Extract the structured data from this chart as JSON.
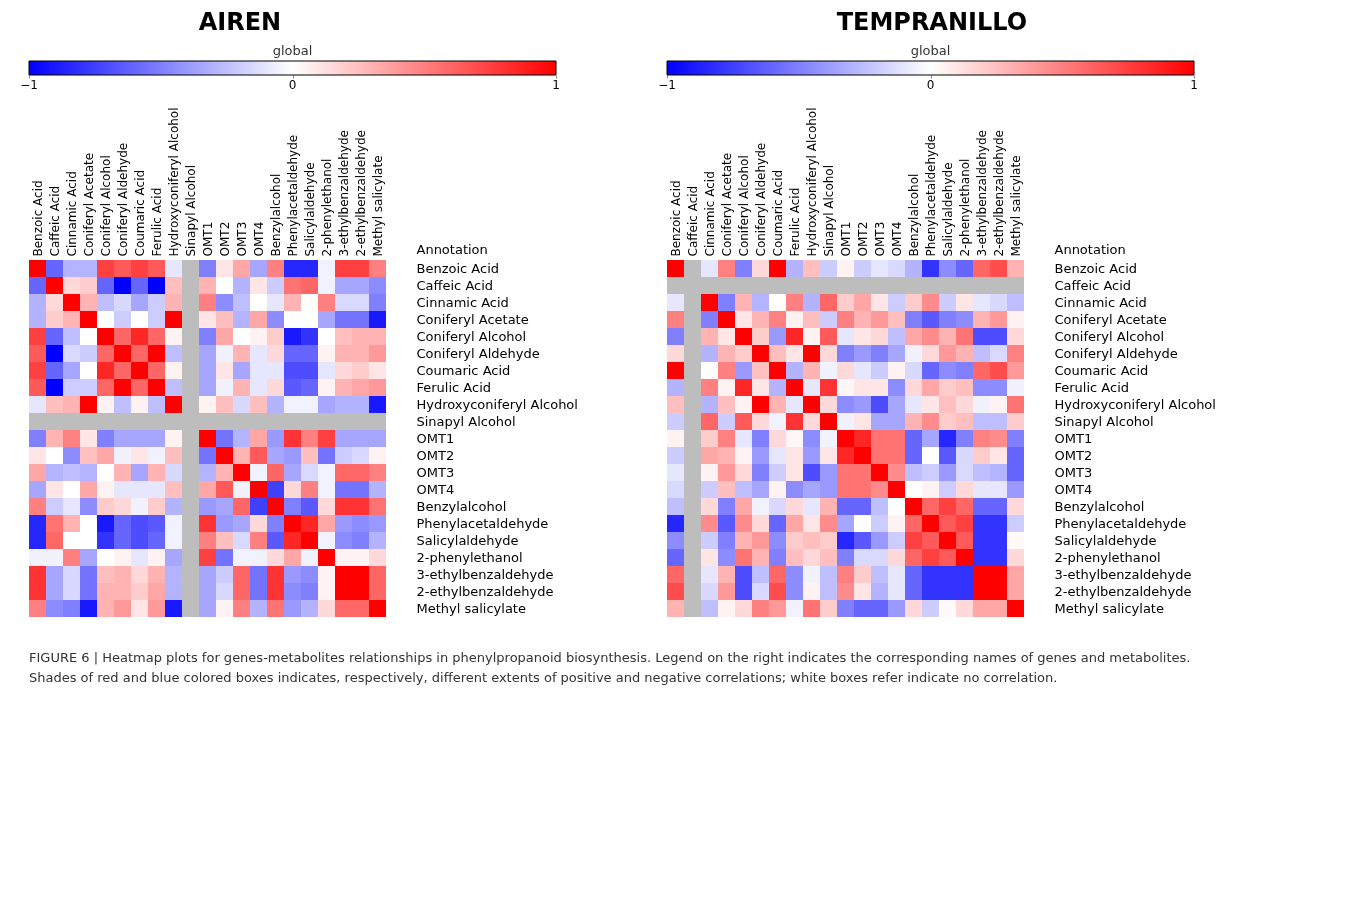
{
  "chart_data": [
    {
      "type": "heatmap",
      "title": "AIREN",
      "legend_title": "global",
      "ylabel": "Annotation",
      "clim": [
        -1,
        1
      ],
      "cticks": [
        -1,
        0,
        1
      ],
      "categories": [
        "Benzoic Acid",
        "Caffeic Acid",
        "Cinnamic Acid",
        "Coniferyl Acetate",
        "Coniferyl Alcohol",
        "Coniferyl Aldehyde",
        "Coumaric Acid",
        "Ferulic Acid",
        "Hydroxyconiferyl Alcohol",
        "Sinapyl Alcohol",
        "OMT1",
        "OMT2",
        "OMT3",
        "OMT4",
        "Benzylalcohol",
        "Phenylacetaldehyde",
        "Salicylaldehyde",
        "2-phenylethanol",
        "3-ethylbenzaldehyde",
        "2-ethylbenzaldehyde",
        "Methyl salicylate"
      ],
      "y_categories": [
        "Benzoic Acid",
        "Caffeic Acid",
        "Cinnamic Acid",
        "Coniferyl Acetate",
        "Coniferyl Alcohol",
        "Coniferyl Aldehyde",
        "Coumaric Acid",
        "Ferulic Acid",
        "Hydroxyconiferyl Alcohol",
        "Sinapyl Alcohol",
        "OMT1",
        "OMT2",
        "OMT3",
        "OMT4",
        "Benzylalcohol",
        "Phenylacetaldehyde",
        "Salicylaldehyde",
        "2-phenylethanol",
        "3-ethylbenzaldehyde",
        "2-ethylbenzaldehyde",
        "Methyl salicylate"
      ],
      "cells": [
        [
          1,
          -0.6,
          -0.3,
          -0.3,
          0.75,
          0.65,
          0.75,
          0.65,
          -0.1,
          null,
          -0.5,
          0.1,
          0.35,
          -0.35,
          0.5,
          -0.85,
          -0.85,
          -0.05,
          0.75,
          0.75,
          0.5
        ],
        [
          -0.6,
          1,
          0.15,
          0.2,
          -0.6,
          -1,
          -0.6,
          -1,
          0.25,
          null,
          0.3,
          0,
          -0.3,
          0.1,
          -0.2,
          0.55,
          0.6,
          -0.05,
          -0.35,
          -0.35,
          -0.45
        ],
        [
          -0.3,
          0.15,
          1,
          0.3,
          -0.25,
          -0.15,
          -0.35,
          -0.2,
          0.3,
          null,
          0.5,
          -0.45,
          -0.25,
          0,
          -0.1,
          0.3,
          0,
          0.5,
          -0.15,
          -0.15,
          -0.5
        ],
        [
          -0.3,
          0.2,
          0.3,
          1,
          0,
          -0.2,
          0,
          -0.2,
          1,
          null,
          0.1,
          0.25,
          -0.3,
          0.35,
          -0.45,
          0,
          0,
          -0.35,
          -0.55,
          -0.55,
          -0.9
        ],
        [
          0.75,
          -0.6,
          -0.25,
          0,
          1,
          0.6,
          0.85,
          0.6,
          0.05,
          null,
          -0.5,
          0.35,
          0,
          0.05,
          0.2,
          -0.9,
          -0.8,
          0,
          0.25,
          0.3,
          0.3
        ],
        [
          0.65,
          -1,
          -0.15,
          -0.2,
          0.6,
          1,
          0.6,
          1,
          -0.25,
          null,
          -0.35,
          -0.05,
          0.3,
          -0.1,
          0.15,
          -0.6,
          -0.6,
          0.05,
          0.3,
          0.3,
          0.4
        ],
        [
          0.75,
          -0.6,
          -0.35,
          0,
          0.85,
          0.6,
          1,
          0.6,
          0.05,
          null,
          -0.35,
          0.1,
          -0.35,
          -0.1,
          -0.1,
          -0.7,
          -0.7,
          -0.1,
          0.15,
          0.2,
          0.1
        ],
        [
          0.65,
          -1,
          -0.2,
          -0.2,
          0.6,
          1,
          0.6,
          1,
          -0.25,
          null,
          -0.35,
          -0.05,
          0.3,
          -0.1,
          0.15,
          -0.65,
          -0.6,
          0.05,
          0.3,
          0.35,
          0.4
        ],
        [
          -0.1,
          0.25,
          0.3,
          1,
          0.05,
          -0.25,
          0.05,
          -0.25,
          1,
          null,
          0.05,
          0.25,
          -0.15,
          0.25,
          -0.3,
          -0.05,
          -0.05,
          -0.35,
          -0.3,
          -0.3,
          -0.9
        ],
        [
          null,
          null,
          null,
          null,
          null,
          null,
          null,
          null,
          null,
          null,
          null,
          null,
          null,
          null,
          null,
          null,
          null,
          null,
          null,
          null,
          null
        ],
        [
          -0.5,
          0.3,
          0.5,
          0.1,
          -0.5,
          -0.35,
          -0.35,
          -0.35,
          0.05,
          null,
          1,
          -0.55,
          -0.3,
          0.35,
          -0.4,
          0.8,
          0.5,
          0.75,
          -0.35,
          -0.35,
          -0.35
        ],
        [
          0.1,
          0,
          -0.45,
          0.25,
          0.35,
          -0.05,
          0.1,
          -0.05,
          0.25,
          null,
          -0.55,
          1,
          0.3,
          0.65,
          -0.35,
          -0.4,
          0.25,
          -0.55,
          -0.2,
          -0.15,
          0.05
        ],
        [
          0.35,
          -0.3,
          -0.25,
          -0.3,
          0,
          0.3,
          -0.35,
          0.3,
          -0.15,
          null,
          -0.3,
          0.3,
          1,
          -0.05,
          0.6,
          -0.35,
          -0.15,
          -0.05,
          0.6,
          0.6,
          0.5
        ],
        [
          -0.35,
          0.1,
          0,
          0.35,
          0.05,
          -0.1,
          -0.1,
          -0.1,
          0.25,
          null,
          0.35,
          0.65,
          -0.05,
          1,
          -0.75,
          0.15,
          0.5,
          -0.05,
          -0.55,
          -0.55,
          -0.3
        ],
        [
          0.5,
          -0.2,
          -0.1,
          -0.45,
          0.2,
          0.15,
          -0.05,
          0.2,
          -0.3,
          null,
          -0.4,
          -0.35,
          0.6,
          -0.75,
          1,
          -0.5,
          -0.65,
          0.15,
          0.8,
          0.8,
          0.55
        ],
        [
          -0.85,
          0.55,
          0.3,
          0,
          -0.9,
          -0.6,
          -0.7,
          -0.65,
          -0.05,
          null,
          0.8,
          -0.4,
          -0.35,
          0.15,
          -0.5,
          1,
          0.85,
          0.35,
          -0.4,
          -0.45,
          -0.4
        ],
        [
          -0.85,
          0.6,
          0,
          0,
          -0.8,
          -0.6,
          -0.7,
          -0.6,
          -0.05,
          null,
          0.5,
          0.25,
          -0.15,
          0.5,
          -0.65,
          0.85,
          1,
          -0.05,
          -0.45,
          -0.5,
          -0.3
        ],
        [
          -0.05,
          -0.05,
          0.5,
          -0.35,
          0,
          0.05,
          -0.1,
          0.05,
          -0.35,
          null,
          0.75,
          -0.55,
          -0.05,
          -0.05,
          0.15,
          0.35,
          -0.05,
          1,
          0.05,
          0.05,
          0.15
        ],
        [
          0.8,
          -0.35,
          -0.15,
          -0.55,
          0.25,
          0.3,
          0.15,
          0.3,
          -0.3,
          null,
          -0.35,
          -0.2,
          0.6,
          -0.55,
          0.8,
          -0.4,
          -0.45,
          0.05,
          1,
          1,
          0.6
        ],
        [
          0.8,
          -0.35,
          -0.15,
          -0.55,
          0.3,
          0.3,
          0.2,
          0.35,
          -0.3,
          null,
          -0.35,
          -0.15,
          0.6,
          -0.55,
          0.8,
          -0.45,
          -0.5,
          0.05,
          1,
          1,
          0.6
        ],
        [
          0.5,
          -0.45,
          -0.5,
          -0.9,
          0.3,
          0.4,
          0.1,
          0.4,
          -0.9,
          null,
          -0.35,
          0.05,
          0.5,
          -0.3,
          0.55,
          -0.4,
          -0.3,
          0.15,
          0.6,
          0.6,
          1
        ]
      ],
      "annotations": [
        "FIGURE 6 | Heatmap plots for genes-metabolites relationships in phenylpropanoid biosynthesis. Legend on the right indicates the corresponding names of genes and metabolites. Shades of red and blue colored boxes indicates, respectively, different extents of positive and negative correlations; white boxes refer indicate no correlation."
      ]
    },
    {
      "type": "heatmap",
      "title": "TEMPRANILLO",
      "legend_title": "global",
      "ylabel": "Annotation",
      "clim": [
        -1,
        1
      ],
      "cticks": [
        -1,
        0,
        1
      ],
      "categories": [
        "Benzoic Acid",
        "Caffeic Acid",
        "Cinnamic Acid",
        "Coniferyl Acetate",
        "Coniferyl Alcohol",
        "Coniferyl Aldehyde",
        "Coumaric Acid",
        "Ferulic Acid",
        "Hydroxyconiferyl Alcohol",
        "Sinapyl Alcohol",
        "OMT1",
        "OMT2",
        "OMT3",
        "OMT4",
        "Benzylalcohol",
        "Phenylacetaldehyde",
        "Salicylaldehyde",
        "2-phenylethanol",
        "3-ethylbenzaldehyde",
        "2-ethylbenzaldehyde",
        "Methyl salicylate"
      ],
      "y_categories": [
        "Benzoic Acid",
        "Caffeic Acid",
        "Cinnamic Acid",
        "Coniferyl Acetate",
        "Coniferyl Alcohol",
        "Coniferyl Aldehyde",
        "Coumaric Acid",
        "Ferulic Acid",
        "Hydroxyconiferyl Alcohol",
        "Sinapyl Alcohol",
        "OMT1",
        "OMT2",
        "OMT3",
        "OMT4",
        "Benzylalcohol",
        "Phenylacetaldehyde",
        "Salicylaldehyde",
        "2-phenylethanol",
        "3-ethylbenzaldehyde",
        "2-ethylbenzaldehyde",
        "Methyl salicylate"
      ],
      "cells": [
        [
          1,
          null,
          -0.1,
          0.5,
          -0.5,
          0.15,
          1,
          -0.3,
          0.25,
          -0.2,
          0.05,
          -0.2,
          -0.1,
          -0.15,
          -0.3,
          -0.8,
          -0.45,
          -0.6,
          0.6,
          0.7,
          0.3
        ],
        [
          null,
          null,
          null,
          null,
          null,
          null,
          null,
          null,
          null,
          null,
          null,
          null,
          null,
          null,
          null,
          null,
          null,
          null,
          null,
          null,
          null
        ],
        [
          -0.1,
          null,
          1,
          -0.5,
          0.3,
          -0.3,
          0,
          0.5,
          -0.3,
          0.6,
          0.2,
          0.35,
          0.1,
          -0.2,
          0.2,
          0.45,
          -0.2,
          0.1,
          -0.1,
          -0.15,
          -0.25
        ],
        [
          0.5,
          null,
          -0.5,
          1,
          0.1,
          0.3,
          0.5,
          0.05,
          0.25,
          -0.2,
          0.5,
          0.3,
          0.4,
          0.25,
          -0.5,
          -0.65,
          -0.5,
          -0.45,
          0.3,
          0.4,
          0.05
        ],
        [
          -0.5,
          null,
          0.3,
          0.1,
          1,
          0.2,
          -0.4,
          0.85,
          0.05,
          0.65,
          -0.1,
          0.1,
          0.15,
          -0.25,
          0.35,
          0.45,
          0.3,
          0.55,
          -0.7,
          -0.7,
          0.15
        ],
        [
          0.15,
          null,
          -0.3,
          0.3,
          0.2,
          1,
          0.25,
          0.1,
          1,
          0.15,
          -0.5,
          -0.4,
          -0.5,
          -0.35,
          -0.05,
          0.15,
          0.4,
          0.3,
          -0.25,
          -0.15,
          0.5
        ],
        [
          1,
          null,
          0,
          0.5,
          -0.4,
          0.25,
          1,
          -0.3,
          0.3,
          -0.05,
          0.15,
          -0.1,
          -0.2,
          0.05,
          -0.15,
          -0.6,
          -0.45,
          -0.5,
          0.6,
          0.7,
          0.4
        ],
        [
          -0.3,
          null,
          0.5,
          0.05,
          0.85,
          0.1,
          -0.3,
          1,
          -0.1,
          0.8,
          0.03,
          0.1,
          0.1,
          -0.45,
          0.15,
          0.35,
          0.2,
          0.25,
          -0.45,
          -0.45,
          -0.05
        ],
        [
          0.25,
          null,
          -0.3,
          0.25,
          0.05,
          1,
          0.3,
          -0.1,
          1,
          0.15,
          -0.45,
          -0.4,
          -0.7,
          -0.35,
          -0.1,
          0.1,
          0.25,
          0.15,
          -0.05,
          0.05,
          0.55
        ],
        [
          -0.2,
          null,
          0.6,
          -0.2,
          0.65,
          0.15,
          -0.05,
          0.8,
          0.15,
          1,
          -0.05,
          0.1,
          -0.35,
          -0.35,
          0.3,
          0.45,
          0.2,
          0.25,
          -0.25,
          -0.25,
          0.2
        ],
        [
          0.05,
          null,
          0.2,
          0.5,
          -0.1,
          -0.5,
          0.15,
          0.03,
          -0.45,
          -0.05,
          1,
          0.85,
          0.55,
          0.55,
          -0.6,
          -0.35,
          -0.85,
          -0.5,
          0.5,
          0.45,
          -0.5
        ],
        [
          -0.2,
          null,
          0.35,
          0.3,
          0.05,
          -0.4,
          -0.1,
          0.1,
          -0.4,
          0.1,
          0.85,
          1,
          0.55,
          0.55,
          -0.6,
          0,
          -0.65,
          -0.15,
          0.2,
          0.1,
          -0.6
        ],
        [
          -0.1,
          null,
          0.05,
          0.4,
          0.15,
          -0.5,
          -0.2,
          0.1,
          -0.7,
          -0.4,
          0.55,
          0.55,
          1,
          0.45,
          -0.25,
          -0.2,
          -0.4,
          -0.15,
          -0.25,
          -0.3,
          -0.6
        ],
        [
          -0.15,
          null,
          -0.2,
          0.25,
          -0.25,
          -0.35,
          0.05,
          -0.45,
          -0.35,
          -0.4,
          0.55,
          0.55,
          0.45,
          1,
          0,
          0.05,
          -0.2,
          0.15,
          -0.1,
          -0.1,
          -0.4
        ],
        [
          -0.25,
          null,
          0.15,
          -0.5,
          0.35,
          -0.05,
          -0.15,
          0.15,
          -0.1,
          0.3,
          -0.6,
          -0.6,
          -0.25,
          0,
          1,
          0.6,
          0.75,
          0.6,
          -0.6,
          -0.6,
          0.15
        ],
        [
          -0.85,
          null,
          0.45,
          -0.65,
          0.45,
          0.15,
          -0.6,
          0.35,
          0.1,
          0.45,
          -0.35,
          0,
          -0.2,
          0.05,
          0.6,
          1,
          0.65,
          0.75,
          -0.8,
          -0.8,
          -0.2
        ],
        [
          -0.45,
          null,
          -0.2,
          -0.5,
          0.3,
          0.4,
          -0.45,
          0.2,
          0.25,
          0.2,
          -0.85,
          -0.65,
          -0.4,
          -0.2,
          0.75,
          0.65,
          1,
          0.65,
          -0.8,
          -0.8,
          0.02
        ],
        [
          -0.6,
          null,
          0.1,
          -0.45,
          0.55,
          0.3,
          -0.5,
          0.25,
          0.15,
          0.25,
          -0.5,
          -0.15,
          -0.15,
          0.15,
          0.6,
          0.75,
          0.65,
          1,
          -0.8,
          -0.8,
          0.15
        ],
        [
          0.6,
          null,
          -0.1,
          0.3,
          -0.7,
          -0.25,
          0.6,
          -0.45,
          -0.05,
          -0.25,
          0.5,
          0.2,
          -0.25,
          -0.1,
          -0.6,
          -0.8,
          -0.8,
          -0.8,
          1,
          1,
          0.35
        ],
        [
          0.7,
          null,
          -0.15,
          0.4,
          -0.7,
          -0.15,
          0.7,
          -0.45,
          0.05,
          -0.25,
          0.45,
          0.1,
          -0.3,
          -0.1,
          -0.6,
          -0.8,
          -0.8,
          -0.8,
          1,
          1,
          0.35
        ],
        [
          0.3,
          null,
          -0.25,
          0.05,
          0.15,
          0.5,
          0.4,
          -0.05,
          0.55,
          0.2,
          -0.5,
          -0.6,
          -0.6,
          -0.4,
          0.15,
          -0.2,
          0.02,
          0.15,
          0.35,
          0.35,
          1
        ]
      ]
    }
  ]
}
